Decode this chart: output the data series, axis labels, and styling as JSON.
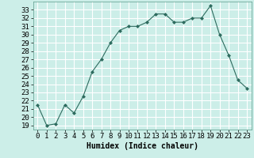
{
  "xlabel": "Humidex (Indice chaleur)",
  "x": [
    0,
    1,
    2,
    3,
    4,
    5,
    6,
    7,
    8,
    9,
    10,
    11,
    12,
    13,
    14,
    15,
    16,
    17,
    18,
    19,
    20,
    21,
    22,
    23
  ],
  "y": [
    21.5,
    19.0,
    19.2,
    21.5,
    20.5,
    22.5,
    25.5,
    27.0,
    29.0,
    30.5,
    31.0,
    31.0,
    31.5,
    32.5,
    32.5,
    31.5,
    31.5,
    32.0,
    32.0,
    33.5,
    30.0,
    27.5,
    24.5,
    23.5
  ],
  "ylim": [
    18.5,
    34.0
  ],
  "yticks": [
    19,
    20,
    21,
    22,
    23,
    24,
    25,
    26,
    27,
    28,
    29,
    30,
    31,
    32,
    33
  ],
  "line_color": "#2d6b5e",
  "marker": "D",
  "marker_size": 2.0,
  "bg_color": "#cceee8",
  "grid_color": "#ffffff",
  "axis_label_fontsize": 7,
  "tick_fontsize": 6.5
}
